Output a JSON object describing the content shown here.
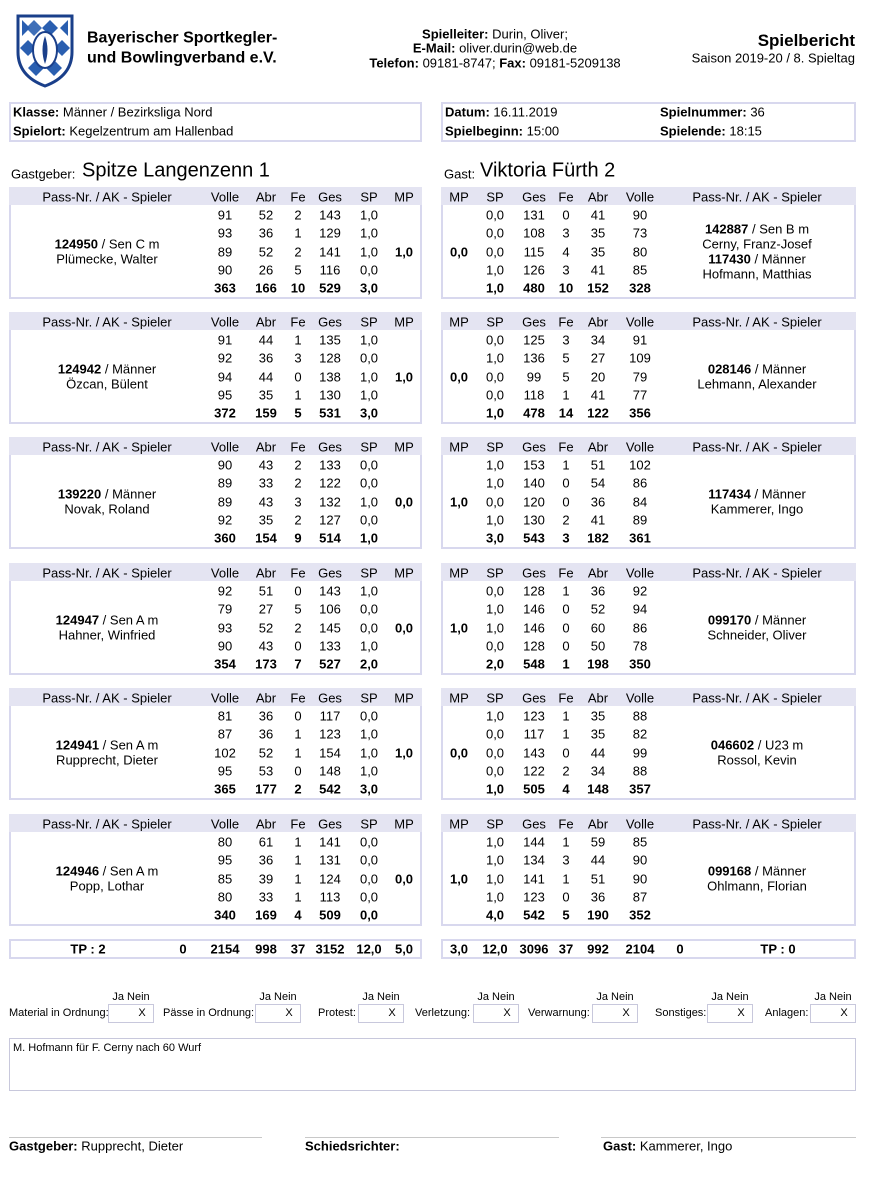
{
  "header": {
    "org_line1": "Bayerischer Sportkegler-",
    "org_line2": "und Bowlingverband e.V.",
    "leiter_label": "Spielleiter:",
    "leiter": "Durin, Oliver;",
    "email_label": "E-Mail:",
    "email": "oliver.durin@web.de",
    "tel_label": "Telefon:",
    "tel": "09181-8747;",
    "fax_label": "Fax:",
    "fax": "09181-5209138",
    "title": "Spielbericht",
    "subtitle": "Saison 2019-20 / 8. Spieltag"
  },
  "info": {
    "klasse_label": "Klasse:",
    "klasse": "Männer / Bezirksliga Nord",
    "spielort_label": "Spielort:",
    "spielort": "Kegelzentrum am Hallenbad",
    "datum_label": "Datum:",
    "datum": "16.11.2019",
    "beginn_label": "Spielbeginn:",
    "beginn": "15:00",
    "nummer_label": "Spielnummer:",
    "nummer": "36",
    "ende_label": "Spielende:",
    "ende": "18:15"
  },
  "home": {
    "label": "Gastgeber:",
    "name": "Spitze Langenzenn 1"
  },
  "away": {
    "label": "Gast:",
    "name": "Viktoria Fürth 2"
  },
  "columns": {
    "home": [
      "Pass-Nr. / AK - Spieler",
      "Volle",
      "Abr",
      "Fe",
      "Ges",
      "SP",
      "MP"
    ],
    "away": [
      "MP",
      "SP",
      "Ges",
      "Fe",
      "Abr",
      "Volle",
      "Pass-Nr. / AK - Spieler"
    ]
  },
  "blocks": [
    {
      "home": {
        "players": [
          {
            "pass": "124950",
            "ak": "/ Sen C m",
            "name": "Plümecke, Walter"
          }
        ],
        "rows": [
          [
            91,
            52,
            2,
            143,
            "1,0"
          ],
          [
            93,
            36,
            1,
            129,
            "1,0"
          ],
          [
            89,
            52,
            2,
            141,
            "1,0"
          ],
          [
            90,
            26,
            5,
            116,
            "0,0"
          ]
        ],
        "total": [
          363,
          166,
          10,
          529,
          "3,0"
        ],
        "mp": "1,0"
      },
      "away": {
        "players": [
          {
            "pass": "142887",
            "ak": "/ Sen B m",
            "name": "Cerny, Franz-Josef"
          },
          {
            "pass": "117430",
            "ak": "/ Männer",
            "name": "Hofmann, Matthias"
          }
        ],
        "rows": [
          [
            "0,0",
            131,
            0,
            41,
            90
          ],
          [
            "0,0",
            108,
            3,
            35,
            73
          ],
          [
            "0,0",
            115,
            4,
            35,
            80
          ],
          [
            "1,0",
            126,
            3,
            41,
            85
          ]
        ],
        "total": [
          "1,0",
          480,
          10,
          152,
          328
        ],
        "mp": "0,0"
      }
    },
    {
      "home": {
        "players": [
          {
            "pass": "124942",
            "ak": "/ Männer",
            "name": "Özcan, Bülent"
          }
        ],
        "rows": [
          [
            91,
            44,
            1,
            135,
            "1,0"
          ],
          [
            92,
            36,
            3,
            128,
            "0,0"
          ],
          [
            94,
            44,
            0,
            138,
            "1,0"
          ],
          [
            95,
            35,
            1,
            130,
            "1,0"
          ]
        ],
        "total": [
          372,
          159,
          5,
          531,
          "3,0"
        ],
        "mp": "1,0"
      },
      "away": {
        "players": [
          {
            "pass": "028146",
            "ak": "/ Männer",
            "name": "Lehmann, Alexander"
          }
        ],
        "rows": [
          [
            "0,0",
            125,
            3,
            34,
            91
          ],
          [
            "1,0",
            136,
            5,
            27,
            109
          ],
          [
            "0,0",
            99,
            5,
            20,
            79
          ],
          [
            "0,0",
            118,
            1,
            41,
            77
          ]
        ],
        "total": [
          "1,0",
          478,
          14,
          122,
          356
        ],
        "mp": "0,0"
      }
    },
    {
      "home": {
        "players": [
          {
            "pass": "139220",
            "ak": "/ Männer",
            "name": "Novak, Roland"
          }
        ],
        "rows": [
          [
            90,
            43,
            2,
            133,
            "0,0"
          ],
          [
            89,
            33,
            2,
            122,
            "0,0"
          ],
          [
            89,
            43,
            3,
            132,
            "1,0"
          ],
          [
            92,
            35,
            2,
            127,
            "0,0"
          ]
        ],
        "total": [
          360,
          154,
          9,
          514,
          "1,0"
        ],
        "mp": "0,0"
      },
      "away": {
        "players": [
          {
            "pass": "117434",
            "ak": "/ Männer",
            "name": "Kammerer, Ingo"
          }
        ],
        "rows": [
          [
            "1,0",
            153,
            1,
            51,
            102
          ],
          [
            "1,0",
            140,
            0,
            54,
            86
          ],
          [
            "0,0",
            120,
            0,
            36,
            84
          ],
          [
            "1,0",
            130,
            2,
            41,
            89
          ]
        ],
        "total": [
          "3,0",
          543,
          3,
          182,
          361
        ],
        "mp": "1,0"
      }
    },
    {
      "home": {
        "players": [
          {
            "pass": "124947",
            "ak": "/ Sen A m",
            "name": "Hahner, Winfried"
          }
        ],
        "rows": [
          [
            92,
            51,
            0,
            143,
            "1,0"
          ],
          [
            79,
            27,
            5,
            106,
            "0,0"
          ],
          [
            93,
            52,
            2,
            145,
            "0,0"
          ],
          [
            90,
            43,
            0,
            133,
            "1,0"
          ]
        ],
        "total": [
          354,
          173,
          7,
          527,
          "2,0"
        ],
        "mp": "0,0"
      },
      "away": {
        "players": [
          {
            "pass": "099170",
            "ak": "/ Männer",
            "name": "Schneider, Oliver"
          }
        ],
        "rows": [
          [
            "0,0",
            128,
            1,
            36,
            92
          ],
          [
            "1,0",
            146,
            0,
            52,
            94
          ],
          [
            "1,0",
            146,
            0,
            60,
            86
          ],
          [
            "0,0",
            128,
            0,
            50,
            78
          ]
        ],
        "total": [
          "2,0",
          548,
          1,
          198,
          350
        ],
        "mp": "1,0"
      }
    },
    {
      "home": {
        "players": [
          {
            "pass": "124941",
            "ak": "/ Sen A m",
            "name": "Rupprecht, Dieter"
          }
        ],
        "rows": [
          [
            81,
            36,
            0,
            117,
            "0,0"
          ],
          [
            87,
            36,
            1,
            123,
            "1,0"
          ],
          [
            102,
            52,
            1,
            154,
            "1,0"
          ],
          [
            95,
            53,
            0,
            148,
            "1,0"
          ]
        ],
        "total": [
          365,
          177,
          2,
          542,
          "3,0"
        ],
        "mp": "1,0"
      },
      "away": {
        "players": [
          {
            "pass": "046602",
            "ak": "/ U23 m",
            "name": "Rossol, Kevin"
          }
        ],
        "rows": [
          [
            "1,0",
            123,
            1,
            35,
            88
          ],
          [
            "0,0",
            117,
            1,
            35,
            82
          ],
          [
            "0,0",
            143,
            0,
            44,
            99
          ],
          [
            "0,0",
            122,
            2,
            34,
            88
          ]
        ],
        "total": [
          "1,0",
          505,
          4,
          148,
          357
        ],
        "mp": "0,0"
      }
    },
    {
      "home": {
        "players": [
          {
            "pass": "124946",
            "ak": "/ Sen A m",
            "name": "Popp, Lothar"
          }
        ],
        "rows": [
          [
            80,
            61,
            1,
            141,
            "0,0"
          ],
          [
            95,
            36,
            1,
            131,
            "0,0"
          ],
          [
            85,
            39,
            1,
            124,
            "0,0"
          ],
          [
            80,
            33,
            1,
            113,
            "0,0"
          ]
        ],
        "total": [
          340,
          169,
          4,
          509,
          "0,0"
        ],
        "mp": "0,0"
      },
      "away": {
        "players": [
          {
            "pass": "099168",
            "ak": "/ Männer",
            "name": "Ohlmann, Florian"
          }
        ],
        "rows": [
          [
            "1,0",
            144,
            1,
            59,
            85
          ],
          [
            "1,0",
            134,
            3,
            44,
            90
          ],
          [
            "1,0",
            141,
            1,
            51,
            90
          ],
          [
            "1,0",
            123,
            0,
            36,
            87
          ]
        ],
        "total": [
          "4,0",
          542,
          5,
          190,
          352
        ],
        "mp": "1,0"
      }
    }
  ],
  "totals": {
    "home": [
      "TP : 2",
      0,
      2154,
      998,
      37,
      3152,
      "12,0",
      "5,0"
    ],
    "away": [
      "3,0",
      "12,0",
      3096,
      37,
      992,
      2104,
      0,
      "TP : 0"
    ]
  },
  "checks": {
    "yesno": "Ja Nein",
    "mark": "X",
    "items": [
      "Material in Ordnung:",
      "Pässe in Ordnung:",
      "Protest:",
      "Verletzung:",
      "Verwarnung:",
      "Sonstiges:",
      "Anlagen:"
    ]
  },
  "note": "M. Hofmann für F. Cerny nach 60 Wurf",
  "signatures": {
    "home_label": "Gastgeber:",
    "home": "Rupprecht, Dieter",
    "referee_label": "Schiedsrichter:",
    "away_label": "Gast:",
    "away": "Kammerer, Ingo"
  }
}
